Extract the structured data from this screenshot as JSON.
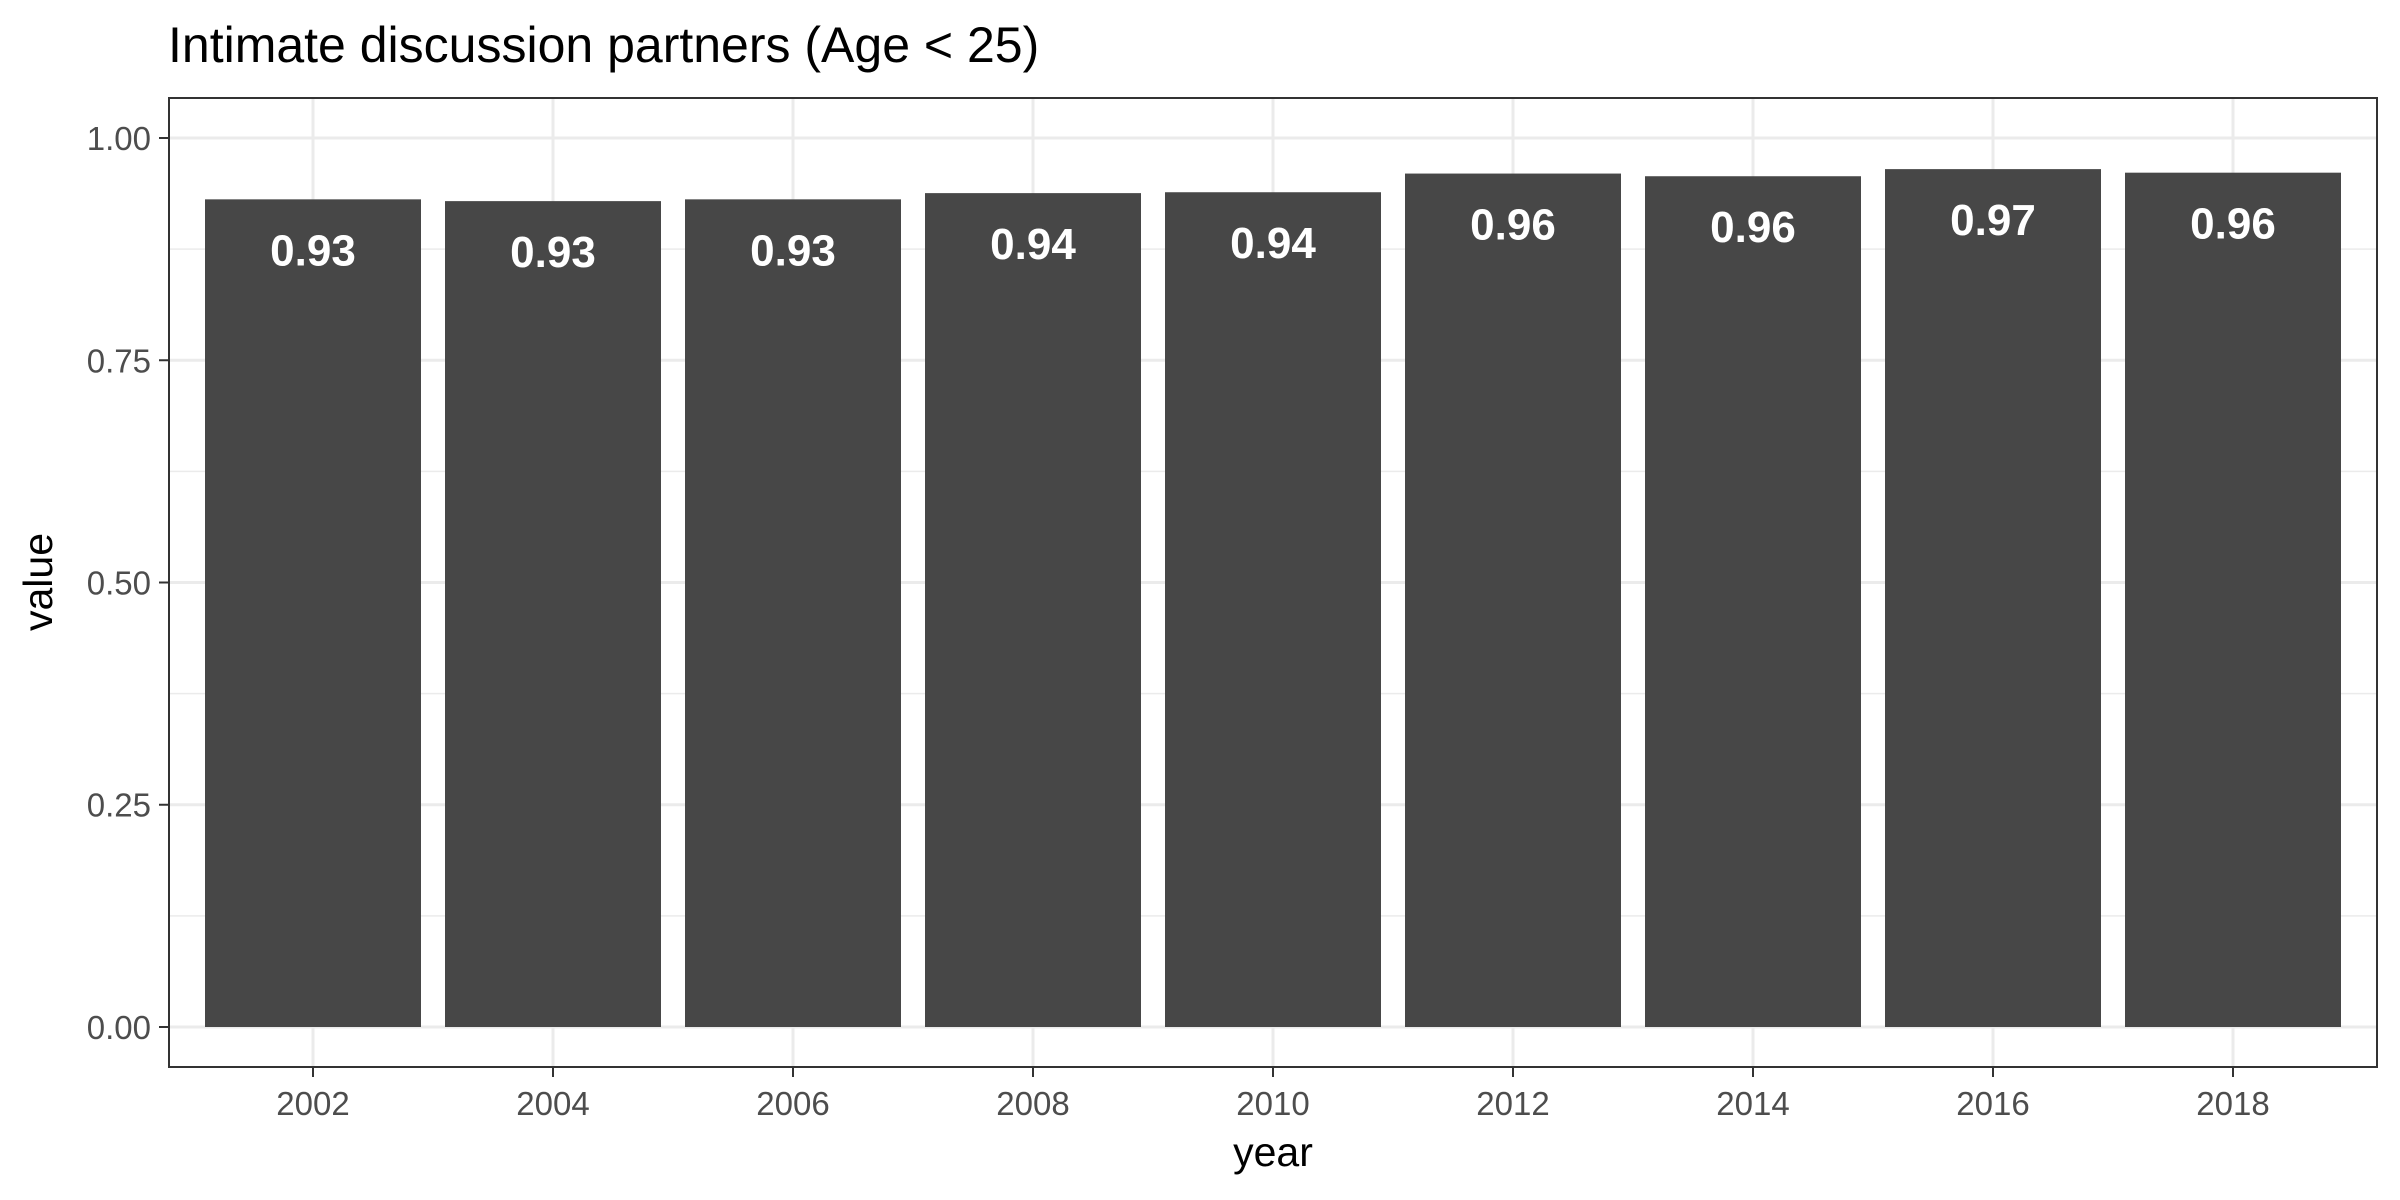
{
  "chart_data": {
    "type": "bar",
    "title": "Intimate discussion partners (Age < 25)",
    "xlabel": "year",
    "ylabel": "value",
    "categories": [
      "2002",
      "2004",
      "2006",
      "2008",
      "2010",
      "2012",
      "2014",
      "2016",
      "2018"
    ],
    "values": [
      0.931,
      0.929,
      0.931,
      0.938,
      0.939,
      0.96,
      0.957,
      0.965,
      0.961
    ],
    "data_labels": [
      "0.93",
      "0.93",
      "0.93",
      "0.94",
      "0.94",
      "0.96",
      "0.96",
      "0.97",
      "0.96"
    ],
    "ylim": [
      0,
      1
    ],
    "yticks": [
      0,
      0.25,
      0.5,
      0.75,
      1
    ],
    "ytick_labels": [
      "0.00",
      "0.25",
      "0.50",
      "0.75",
      "1.00"
    ],
    "grid": true,
    "legend": "none",
    "bar_color": "#474747"
  }
}
